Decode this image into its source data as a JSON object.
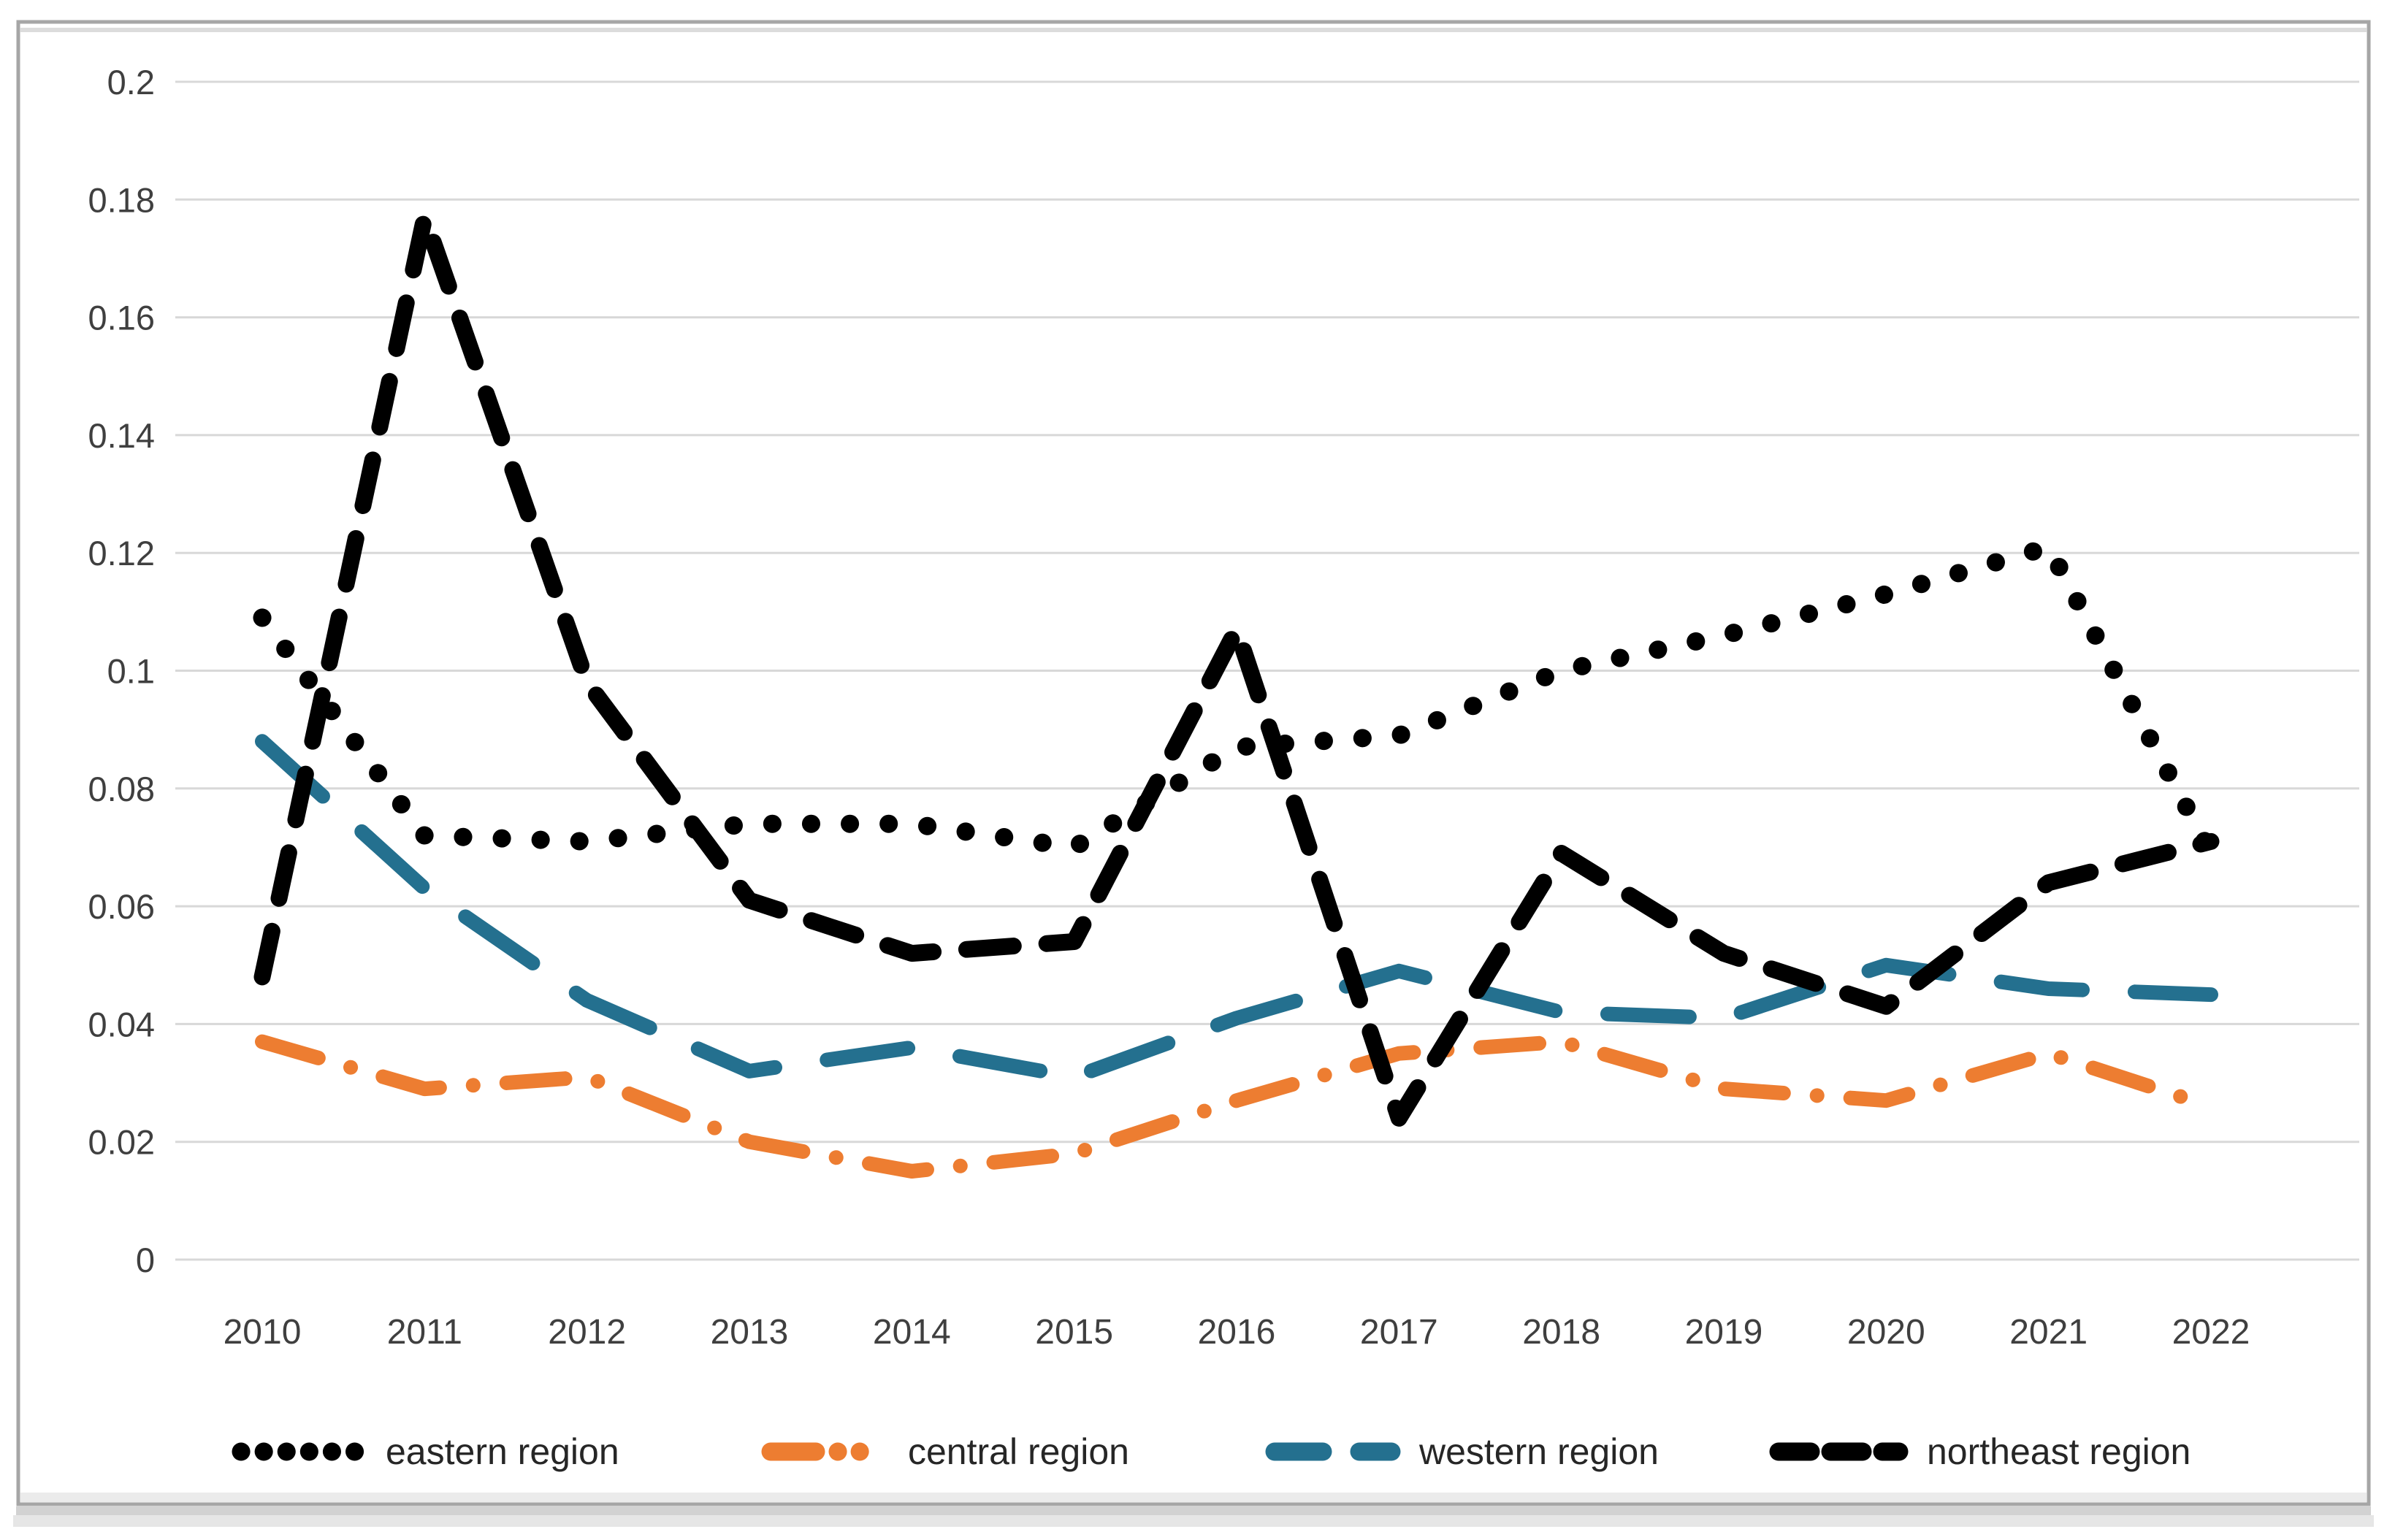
{
  "chart_data": {
    "type": "line",
    "title": "",
    "xlabel": "",
    "ylabel": "",
    "x": [
      2010,
      2011,
      2012,
      2013,
      2014,
      2015,
      2016,
      2017,
      2018,
      2019,
      2020,
      2021,
      2022
    ],
    "x_tick_labels": [
      "2010",
      "2011",
      "2012",
      "2013",
      "2014",
      "2015",
      "2016",
      "2017",
      "2018",
      "2019",
      "2020",
      "2021",
      "2022"
    ],
    "ylim": [
      0,
      0.2
    ],
    "ytick_step": 0.02,
    "y_tick_labels": [
      "0.2",
      "0.18",
      "0.16",
      "0.14",
      "0.12",
      "0.1",
      "0.08",
      "0.06",
      "0.04",
      "0.02",
      "0"
    ],
    "grid": "horizontal",
    "legend_position": "bottom",
    "series": [
      {
        "name": "eastern region",
        "color": "#000000",
        "line_style": "dotted",
        "values": [
          0.109,
          0.072,
          0.071,
          0.074,
          0.074,
          0.07,
          0.087,
          0.089,
          0.1,
          0.106,
          0.113,
          0.121,
          0.069
        ]
      },
      {
        "name": "central region",
        "color": "#ED7D31",
        "line_style": "dash-dot",
        "values": [
          0.037,
          0.029,
          0.031,
          0.02,
          0.015,
          0.018,
          0.027,
          0.035,
          0.037,
          0.029,
          0.027,
          0.035,
          0.026
        ]
      },
      {
        "name": "western region",
        "color": "#24708F",
        "line_style": "dashed",
        "values": [
          0.088,
          0.063,
          0.044,
          0.032,
          0.036,
          0.031,
          0.041,
          0.049,
          0.042,
          0.041,
          0.05,
          0.046,
          0.045
        ]
      },
      {
        "name": "northeast region",
        "color": "#000000",
        "line_style": "long-dash",
        "values": [
          0.048,
          0.177,
          0.098,
          0.061,
          0.052,
          0.054,
          0.107,
          0.024,
          0.069,
          0.052,
          0.043,
          0.064,
          0.071
        ]
      }
    ]
  },
  "colors": {
    "grid_line": "#D8D8D8",
    "tick_label": "#3F3F3F",
    "legend_text": "#262626",
    "frame_border": "#A6A6A6",
    "background": "#FFFFFF"
  }
}
